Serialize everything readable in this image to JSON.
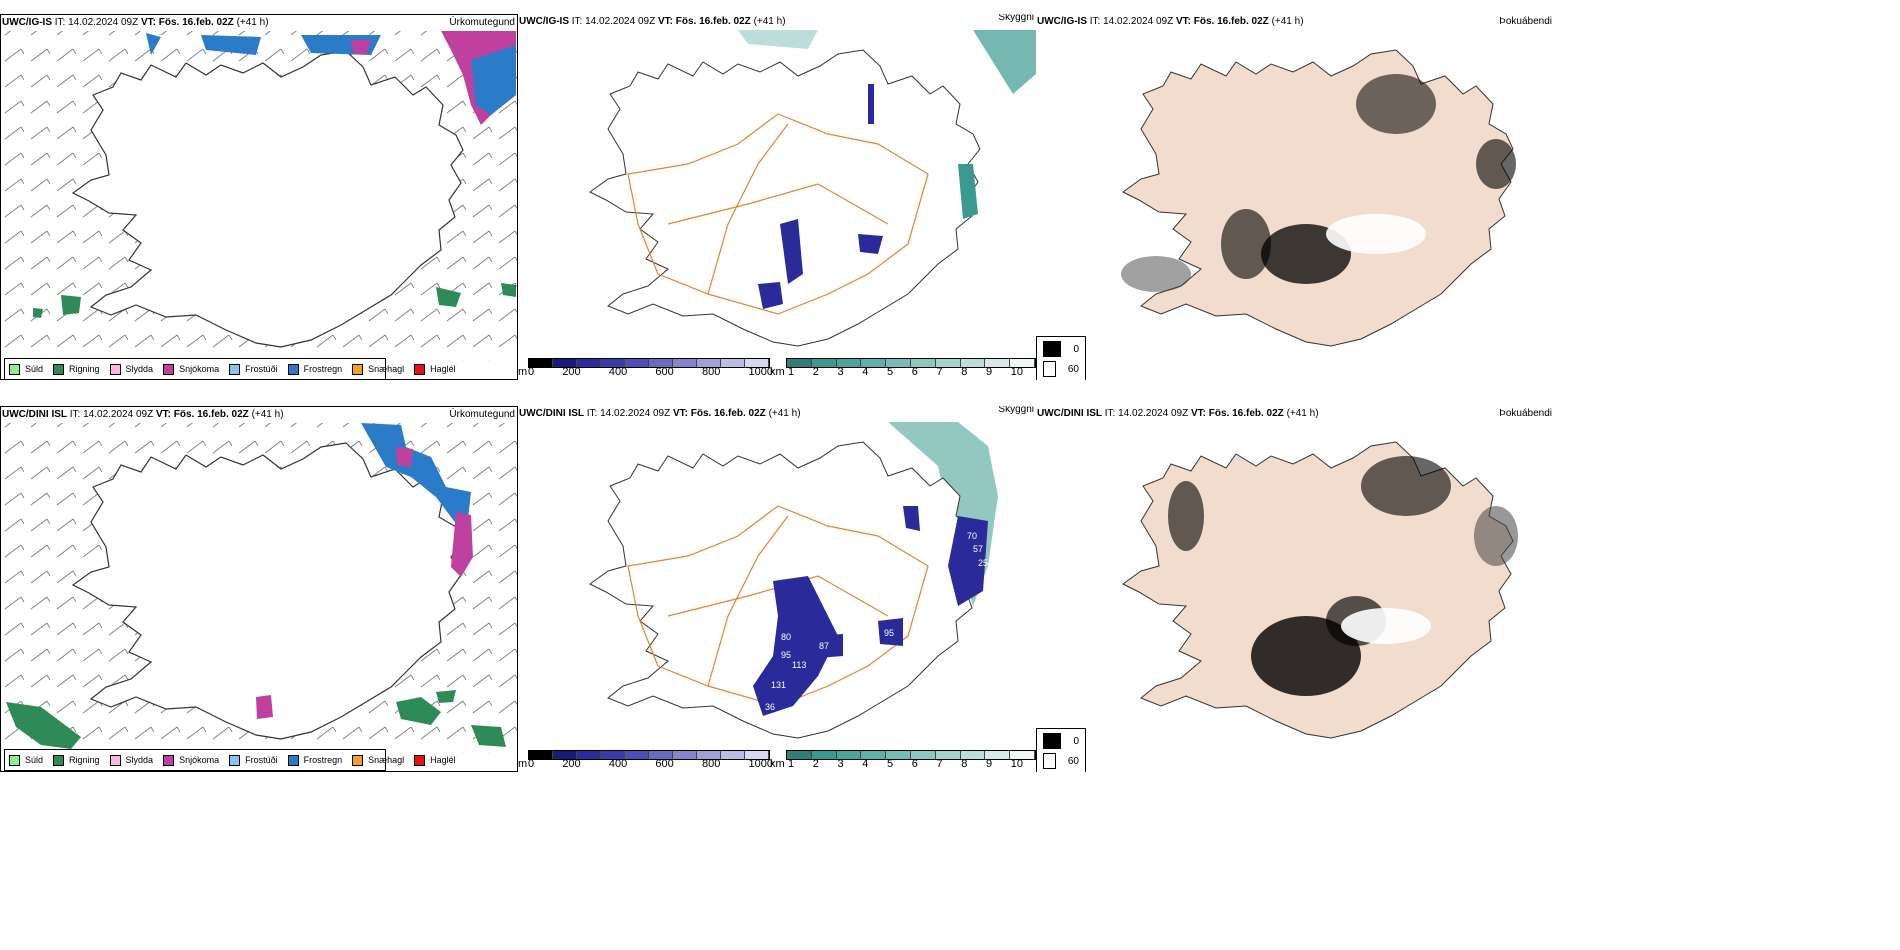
{
  "rows": [
    {
      "model": "UWC/IG-IS",
      "it_label": "IT:",
      "it": "14.02.2024 09Z",
      "vt_label": "VT:",
      "vt": "Fös. 16.feb. 02Z",
      "lead": "(+41 h)"
    },
    {
      "model": "UWC/DINI ISL",
      "it_label": "IT:",
      "it": "14.02.2024 09Z",
      "vt_label": "VT:",
      "vt": "Fös. 16.feb. 02Z",
      "lead": "(+41 h)"
    }
  ],
  "panel_titles": {
    "precip": "Úrkomutegund",
    "visibility": "Skyggni",
    "fog": "Þokuábendi"
  },
  "precip_legend": [
    {
      "label": "Súld",
      "color": "#90ee90"
    },
    {
      "label": "Rigning",
      "color": "#2e8b57"
    },
    {
      "label": "Slydda",
      "color": "#ffb6e0"
    },
    {
      "label": "Snjókoma",
      "color": "#c040a0"
    },
    {
      "label": "Frostúði",
      "color": "#87c4f0"
    },
    {
      "label": "Frostregn",
      "color": "#2a7bc8"
    },
    {
      "label": "Snæhagl",
      "color": "#f5a020"
    },
    {
      "label": "Haglél",
      "color": "#e81010"
    }
  ],
  "vis_scale_m": {
    "unit": "m",
    "ticks": [
      "0",
      "200",
      "400",
      "600",
      "800",
      "1000"
    ]
  },
  "vis_scale_km": {
    "unit": "km",
    "ticks": [
      "1",
      "2",
      "3",
      "4",
      "5",
      "6",
      "7",
      "8",
      "9",
      "10"
    ]
  },
  "fog_legend": [
    {
      "label": "0",
      "color": "#000000"
    },
    {
      "label": "60",
      "color": "#ffffff"
    }
  ],
  "visibility_labels_bottom": [
    "70",
    "57",
    "25",
    "80",
    "95",
    "87",
    "113",
    "95",
    "131",
    "36"
  ],
  "colors": {
    "coast": "#333333",
    "road": "#e8822c",
    "fog_land": "#f2dccd",
    "vis_blue": "#2a2a9a",
    "vis_teal": "#3a9a90"
  }
}
